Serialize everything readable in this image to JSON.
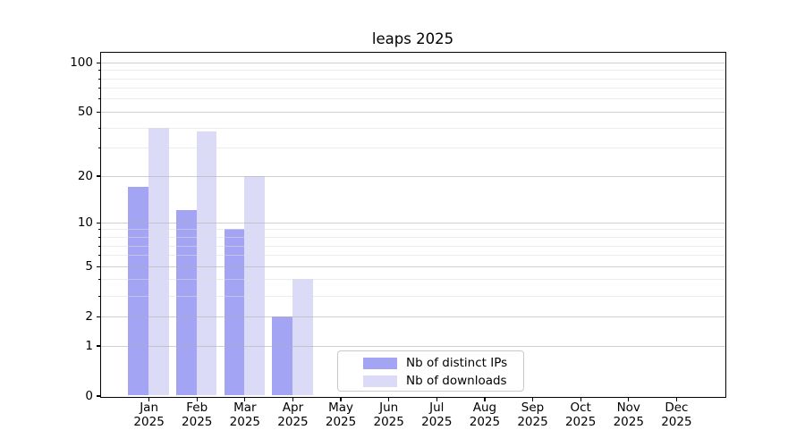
{
  "title": "leaps 2025",
  "legend": {
    "items": [
      {
        "label": "Nb of distinct IPs",
        "color": "#a4a4f4"
      },
      {
        "label": "Nb of downloads",
        "color": "#dbdbf8"
      }
    ]
  },
  "chart_data": {
    "type": "bar",
    "title": "leaps 2025",
    "categories": [
      "Jan 2025",
      "Feb 2025",
      "Mar 2025",
      "Apr 2025",
      "May 2025",
      "Jun 2025",
      "Jul 2025",
      "Aug 2025",
      "Sep 2025",
      "Oct 2025",
      "Nov 2025",
      "Dec 2025"
    ],
    "series": [
      {
        "name": "Nb of distinct IPs",
        "color": "#a4a4f4",
        "values": [
          17,
          12,
          9,
          2,
          0,
          0,
          0,
          0,
          0,
          0,
          0,
          0
        ]
      },
      {
        "name": "Nb of downloads",
        "color": "#dbdbf8",
        "values": [
          40,
          38,
          20,
          4,
          0,
          0,
          0,
          0,
          0,
          0,
          0,
          0
        ]
      }
    ],
    "xlabel": "",
    "ylabel": "",
    "yscale": "log1p",
    "ylim": [
      0,
      115
    ],
    "y_major_ticks": [
      0,
      1,
      2,
      5,
      10,
      20,
      50,
      100
    ],
    "y_minor_ticks": [
      3,
      4,
      6,
      7,
      8,
      9,
      30,
      40,
      60,
      70,
      80,
      90
    ],
    "grid": true,
    "legend_position": "inside-lower-center"
  }
}
